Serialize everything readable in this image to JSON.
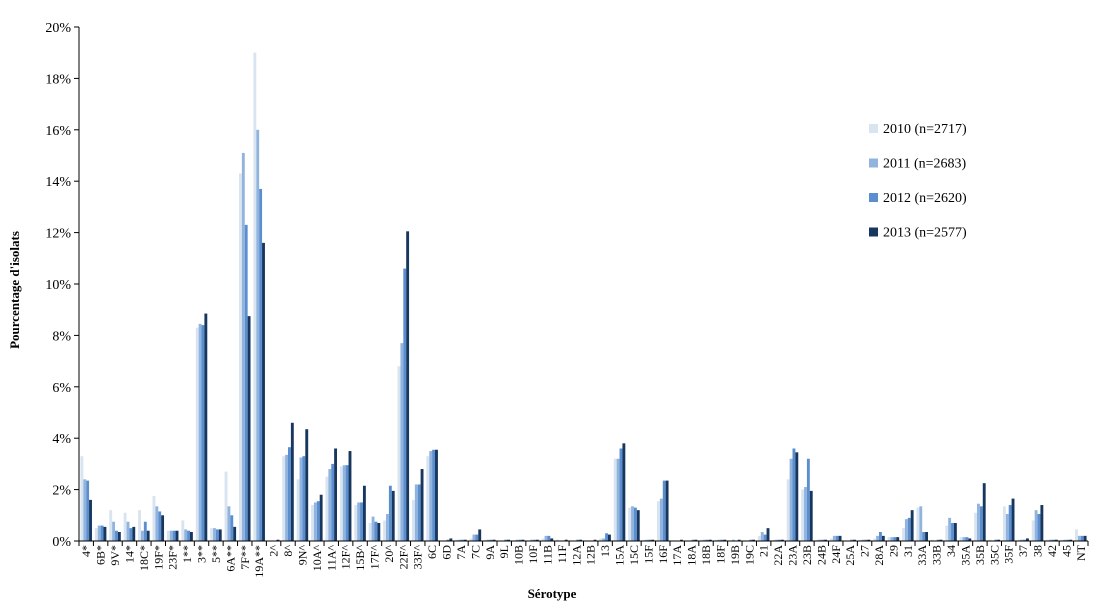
{
  "chart_data": {
    "type": "bar",
    "xlabel": "Sérotype",
    "ylabel": "Pourcentage d'isolats",
    "ylim": [
      0,
      20
    ],
    "yticks": [
      "0%",
      "2%",
      "4%",
      "6%",
      "8%",
      "10%",
      "12%",
      "14%",
      "16%",
      "18%",
      "20%"
    ],
    "grid": false,
    "legend_position": "right",
    "categories": [
      "4*",
      "6B*",
      "9V*",
      "14*",
      "18C*",
      "19F*",
      "23F*",
      "1**",
      "3**",
      "5**",
      "6A**",
      "7F**",
      "19A**",
      "2^",
      "8^",
      "9N^",
      "10A^",
      "11A^",
      "12F^",
      "15B^",
      "17F^",
      "20^",
      "22F^",
      "33F^",
      "6C",
      "6D",
      "7A",
      "7C",
      "9A",
      "9L",
      "10B",
      "10F",
      "11B",
      "11F",
      "12A",
      "12B",
      "13",
      "15A",
      "15C",
      "15F",
      "16F",
      "17A",
      "18A",
      "18B",
      "18F",
      "19B",
      "19C",
      "21",
      "22A",
      "23A",
      "23B",
      "24B",
      "24F",
      "25A",
      "27",
      "28A",
      "29",
      "31",
      "33A",
      "33B",
      "34",
      "35A",
      "35B",
      "35C",
      "35F",
      "37",
      "38",
      "42",
      "45",
      "NT"
    ],
    "series": [
      {
        "name": "2010 (n=2717)",
        "color": "#d9e4f1",
        "values": [
          3.3,
          0.5,
          1.2,
          1.1,
          1.2,
          1.75,
          0.4,
          0.8,
          8.3,
          0.5,
          2.7,
          14.3,
          19.0,
          0,
          3.3,
          2.4,
          1.4,
          2.5,
          2.9,
          1.4,
          0.7,
          0.8,
          6.8,
          1.6,
          3.3,
          0,
          0.05,
          0.1,
          0.05,
          0,
          0,
          0,
          0.1,
          0.05,
          0,
          0,
          0.1,
          3.2,
          1.3,
          0.05,
          1.55,
          0,
          0,
          0.05,
          0.05,
          0,
          0,
          0.2,
          0.05,
          2.4,
          2.0,
          0.05,
          0.1,
          0,
          0.05,
          0.1,
          0.15,
          0.5,
          1.3,
          0.05,
          0.6,
          0.15,
          1.1,
          0.05,
          1.35,
          0.05,
          0.8,
          0.05,
          0.05,
          0.45
        ]
      },
      {
        "name": "2011 (n=2683)",
        "color": "#91b4df",
        "values": [
          2.4,
          0.6,
          0.75,
          0.75,
          0.4,
          1.35,
          0.4,
          0.45,
          8.45,
          0.5,
          1.35,
          15.1,
          16.0,
          0,
          3.35,
          3.25,
          1.5,
          2.8,
          2.95,
          1.5,
          0.95,
          1.05,
          7.7,
          2.2,
          3.5,
          0,
          0.05,
          0.25,
          0.05,
          0,
          0.05,
          0.05,
          0.2,
          0,
          0,
          0,
          0.1,
          3.2,
          1.35,
          0.05,
          1.65,
          0,
          0,
          0.05,
          0.05,
          0.05,
          0,
          0.35,
          0.05,
          3.2,
          2.1,
          0.05,
          0.2,
          0,
          0.05,
          0.2,
          0.15,
          0.85,
          1.35,
          0,
          0.9,
          0.15,
          1.45,
          0,
          1.05,
          0.05,
          1.2,
          0.05,
          0.05,
          0.2
        ]
      },
      {
        "name": "2012 (n=2620)",
        "color": "#5b8ecf",
        "values": [
          2.35,
          0.6,
          0.4,
          0.5,
          0.75,
          1.15,
          0.4,
          0.4,
          8.4,
          0.45,
          1.0,
          12.3,
          13.7,
          0,
          3.65,
          3.3,
          1.55,
          3.0,
          2.95,
          1.5,
          0.75,
          2.15,
          10.6,
          2.2,
          3.55,
          0.05,
          0.05,
          0.25,
          0.05,
          0.05,
          0.05,
          0.05,
          0.2,
          0,
          0.05,
          0,
          0.3,
          3.6,
          1.3,
          0.05,
          2.35,
          0,
          0.05,
          0.05,
          0.05,
          0,
          0.05,
          0.25,
          0.05,
          3.6,
          3.2,
          0.05,
          0.2,
          0.05,
          0.05,
          0.35,
          0.15,
          0.9,
          0.35,
          0.05,
          0.7,
          0.15,
          1.35,
          0.05,
          1.4,
          0.05,
          1.05,
          0.05,
          0.05,
          0.2
        ]
      },
      {
        "name": "2013 (n=2577)",
        "color": "#17375e",
        "values": [
          1.6,
          0.55,
          0.35,
          0.55,
          0.4,
          1.0,
          0.4,
          0.35,
          8.85,
          0.45,
          0.55,
          8.75,
          11.6,
          0.05,
          4.6,
          4.35,
          1.8,
          3.6,
          3.5,
          2.15,
          0.7,
          1.95,
          12.05,
          2.8,
          3.55,
          0.1,
          0.05,
          0.45,
          0.05,
          0.05,
          0.05,
          0.05,
          0.1,
          0.05,
          0.05,
          0.05,
          0.25,
          3.8,
          1.2,
          0.05,
          2.35,
          0.05,
          0.05,
          0.05,
          0.05,
          0.05,
          0.05,
          0.5,
          0.05,
          3.45,
          1.95,
          0.05,
          0.2,
          0.05,
          0.05,
          0.2,
          0.15,
          1.2,
          0.35,
          0.05,
          0.7,
          0.1,
          2.25,
          0.05,
          1.65,
          0.1,
          1.4,
          0.05,
          0.05,
          0.2
        ]
      }
    ]
  }
}
